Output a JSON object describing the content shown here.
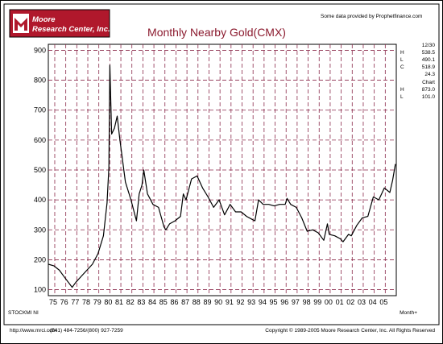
{
  "header": {
    "logo_line1": "Moore",
    "logo_line2": "Research Center, Inc.",
    "source_credit": "Some data provided by Prophetfinance.com"
  },
  "chart_data": {
    "type": "line",
    "title": "Monthly Nearby Gold(CMX)",
    "xlabel": "",
    "ylabel": "",
    "ylim": [
      80,
      920
    ],
    "yticks": [
      100,
      200,
      300,
      400,
      500,
      600,
      700,
      800,
      900
    ],
    "categories": [
      "75",
      "76",
      "77",
      "78",
      "79",
      "80",
      "81",
      "82",
      "83",
      "84",
      "85",
      "86",
      "87",
      "88",
      "89",
      "90",
      "91",
      "92",
      "93",
      "94",
      "95",
      "96",
      "97",
      "98",
      "99",
      "00",
      "01",
      "02",
      "03",
      "04",
      "05"
    ],
    "x_start": "1974-06",
    "grid": true,
    "series": [
      {
        "x": [
          "1974-06",
          "1974-12",
          "1975-06",
          "1975-12",
          "1976-08",
          "1976-12",
          "1977-06",
          "1977-12",
          "1978-06",
          "1978-12",
          "1979-06",
          "1979-10",
          "1979-12",
          "1980-01",
          "1980-03",
          "1980-06",
          "1980-09",
          "1980-12",
          "1981-06",
          "1981-12",
          "1982-06",
          "1982-09",
          "1982-12",
          "1983-02",
          "1983-06",
          "1983-12",
          "1984-06",
          "1984-12",
          "1985-02",
          "1985-06",
          "1985-12",
          "1986-06",
          "1986-09",
          "1986-12",
          "1987-06",
          "1987-12",
          "1988-06",
          "1988-12",
          "1989-06",
          "1989-12",
          "1990-06",
          "1990-12",
          "1991-06",
          "1991-12",
          "1992-06",
          "1992-12",
          "1993-03",
          "1993-07",
          "1993-12",
          "1994-06",
          "1994-12",
          "1995-06",
          "1995-12",
          "1996-02",
          "1996-06",
          "1996-12",
          "1997-06",
          "1997-12",
          "1998-06",
          "1998-12",
          "1999-06",
          "1999-10",
          "1999-12",
          "2000-06",
          "2000-12",
          "2001-03",
          "2001-09",
          "2001-12",
          "2002-06",
          "2002-12",
          "2003-06",
          "2003-12",
          "2004-06",
          "2004-12",
          "2005-06",
          "2005-09",
          "2005-12"
        ],
        "values": [
          185,
          180,
          165,
          140,
          108,
          125,
          145,
          165,
          185,
          220,
          280,
          390,
          510,
          850,
          620,
          640,
          680,
          600,
          460,
          400,
          330,
          420,
          450,
          500,
          420,
          385,
          375,
          310,
          300,
          320,
          330,
          345,
          420,
          400,
          470,
          480,
          440,
          410,
          375,
          400,
          350,
          385,
          360,
          360,
          345,
          335,
          330,
          400,
          385,
          385,
          380,
          385,
          385,
          405,
          385,
          375,
          340,
          295,
          300,
          290,
          265,
          320,
          285,
          280,
          270,
          260,
          285,
          280,
          315,
          340,
          345,
          410,
          400,
          440,
          425,
          465,
          520
        ]
      }
    ]
  },
  "side_info": {
    "date": "12/30",
    "rows": [
      {
        "label": "H",
        "value": "538.5"
      },
      {
        "label": "L",
        "value": "490.1"
      },
      {
        "label": "C",
        "value": "518.9"
      },
      {
        "label": "",
        "value": "24.3"
      }
    ],
    "chart_label": "Chart",
    "extra_rows": [
      {
        "label": "H",
        "value": "873.0"
      },
      {
        "label": "L",
        "value": "101.0"
      }
    ]
  },
  "footer": {
    "left_code": "STOCKMI NI",
    "right_code": "Month+",
    "website": "http://www.mrci.com",
    "phone": "(541) 484-7256/(800) 927-7259",
    "copyright": "Copyright © 1989-2005 Moore Research Center, Inc. All Rights Reserved"
  },
  "colors": {
    "logo_bg": "#b0182c",
    "title": "#8b1a2e",
    "grid": "#8b2a4b",
    "line": "#000000"
  }
}
